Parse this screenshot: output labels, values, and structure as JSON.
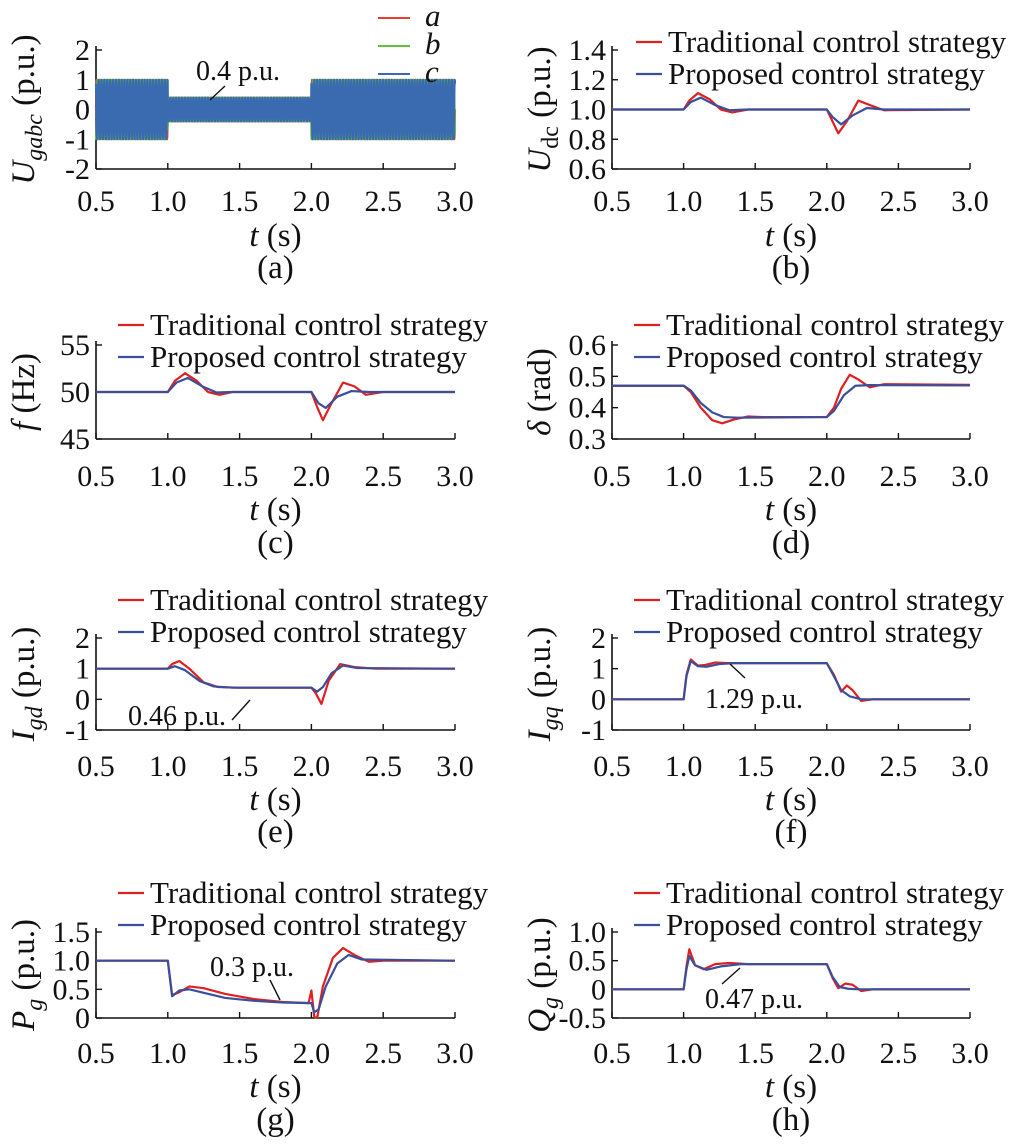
{
  "colors": {
    "traditional": "#e02020",
    "proposed": "#3a4f9a",
    "a": "#e84030",
    "b": "#60c040",
    "c": "#3a6ab0"
  },
  "chart_data": [
    {
      "id": "a",
      "type": "line",
      "sublabel": "(a)",
      "ylabel_main": "U",
      "ylabel_sub": "gabc",
      "ylabel_tail": " (p.u.)",
      "xlabel_var": "t",
      "xlabel_unit": " (s)",
      "xlim": [
        0.5,
        3.0
      ],
      "ylim": [
        -2,
        2
      ],
      "xticks": [
        "0.5",
        "1.0",
        "1.5",
        "2.0",
        "2.5",
        "3.0"
      ],
      "yticks": [
        "-2",
        "-1",
        "0",
        "1",
        "2"
      ],
      "annotation": "0.4 p.u.",
      "series": [
        {
          "name": "a",
          "color": "#e84030"
        },
        {
          "name": "b",
          "color": "#60c040"
        },
        {
          "name": "c",
          "color": "#3a6ab0"
        }
      ],
      "envelope": [
        {
          "from": 0.5,
          "to": 1.0,
          "amplitude": 1.0
        },
        {
          "from": 1.0,
          "to": 2.0,
          "amplitude": 0.4
        },
        {
          "from": 2.0,
          "to": 3.0,
          "amplitude": 1.0
        }
      ]
    },
    {
      "id": "b",
      "type": "line",
      "sublabel": "(b)",
      "ylabel_main": "U",
      "ylabel_sub": "dc",
      "ylabel_tail": " (p.u.)",
      "xlabel_var": "t",
      "xlabel_unit": " (s)",
      "xlim": [
        0.5,
        3.0
      ],
      "ylim": [
        0.6,
        1.4
      ],
      "xticks": [
        "0.5",
        "1.0",
        "1.5",
        "2.0",
        "2.5",
        "3.0"
      ],
      "yticks": [
        "0.6",
        "0.8",
        "1.0",
        "1.2",
        "1.4"
      ],
      "series": [
        {
          "name": "Traditional control strategy",
          "color": "#e02020",
          "x": [
            0.5,
            1.0,
            1.04,
            1.1,
            1.18,
            1.26,
            1.34,
            1.45,
            2.0,
            2.04,
            2.08,
            2.14,
            2.22,
            2.3,
            2.4,
            3.0
          ],
          "y": [
            1.0,
            1.0,
            1.06,
            1.11,
            1.07,
            1.0,
            0.98,
            1.0,
            1.0,
            0.92,
            0.84,
            0.92,
            1.06,
            1.03,
            0.995,
            1.0
          ]
        },
        {
          "name": "Proposed control strategy",
          "color": "#3a4f9a",
          "x": [
            0.5,
            1.0,
            1.05,
            1.12,
            1.22,
            1.32,
            1.45,
            2.0,
            2.04,
            2.1,
            2.18,
            2.28,
            2.4,
            3.0
          ],
          "y": [
            1.0,
            1.0,
            1.05,
            1.08,
            1.03,
            0.995,
            1.0,
            1.0,
            0.95,
            0.9,
            0.96,
            1.01,
            1.0,
            1.0
          ]
        }
      ]
    },
    {
      "id": "c",
      "type": "line",
      "sublabel": "(c)",
      "ylabel_main": "f",
      "ylabel_sub": "",
      "ylabel_tail": " (Hz)",
      "xlabel_var": "t",
      "xlabel_unit": " (s)",
      "xlim": [
        0.5,
        3.0
      ],
      "ylim": [
        45,
        55
      ],
      "xticks": [
        "0.5",
        "1.0",
        "1.5",
        "2.0",
        "2.5",
        "3.0"
      ],
      "yticks": [
        "45",
        "50",
        "55"
      ],
      "series": [
        {
          "name": "Traditional control strategy",
          "color": "#e02020",
          "x": [
            0.5,
            1.0,
            1.05,
            1.12,
            1.2,
            1.28,
            1.36,
            1.45,
            2.0,
            2.04,
            2.08,
            2.14,
            2.22,
            2.3,
            2.38,
            2.5,
            3.0
          ],
          "y": [
            50,
            50,
            51.2,
            52.0,
            51.2,
            50.0,
            49.7,
            50.0,
            50,
            48.4,
            47.0,
            48.8,
            51.0,
            50.6,
            49.7,
            50.0,
            50
          ]
        },
        {
          "name": "Proposed control strategy",
          "color": "#3a4f9a",
          "x": [
            0.5,
            1.0,
            1.06,
            1.14,
            1.24,
            1.34,
            1.45,
            2.0,
            2.05,
            2.1,
            2.18,
            2.28,
            2.4,
            3.0
          ],
          "y": [
            50,
            50,
            51.0,
            51.5,
            50.6,
            49.95,
            50.0,
            50,
            48.8,
            48.3,
            49.5,
            50.1,
            50.0,
            50
          ]
        }
      ]
    },
    {
      "id": "d",
      "type": "line",
      "sublabel": "(d)",
      "ylabel_main": "δ",
      "ylabel_sub": "",
      "ylabel_tail": " (rad)",
      "xlabel_var": "t",
      "xlabel_unit": " (s)",
      "xlim": [
        0.5,
        3.0
      ],
      "ylim": [
        0.3,
        0.6
      ],
      "xticks": [
        "0.5",
        "1.0",
        "1.5",
        "2.0",
        "2.5",
        "3.0"
      ],
      "yticks": [
        "0.3",
        "0.4",
        "0.5",
        "0.6"
      ],
      "series": [
        {
          "name": "Traditional control strategy",
          "color": "#e02020",
          "x": [
            0.5,
            1.0,
            1.05,
            1.12,
            1.2,
            1.27,
            1.35,
            1.45,
            1.55,
            2.0,
            2.05,
            2.1,
            2.16,
            2.22,
            2.3,
            2.4,
            3.0
          ],
          "y": [
            0.47,
            0.47,
            0.45,
            0.4,
            0.36,
            0.35,
            0.362,
            0.372,
            0.37,
            0.37,
            0.4,
            0.46,
            0.505,
            0.49,
            0.465,
            0.475,
            0.473
          ]
        },
        {
          "name": "Proposed control strategy",
          "color": "#3a4f9a",
          "x": [
            0.5,
            1.0,
            1.05,
            1.12,
            1.2,
            1.28,
            1.38,
            2.0,
            2.05,
            2.12,
            2.2,
            2.3,
            3.0
          ],
          "y": [
            0.47,
            0.47,
            0.455,
            0.415,
            0.385,
            0.37,
            0.368,
            0.37,
            0.39,
            0.44,
            0.47,
            0.472,
            0.471
          ]
        }
      ]
    },
    {
      "id": "e",
      "type": "line",
      "sublabel": "(e)",
      "ylabel_main": "I",
      "ylabel_sub": "gd",
      "ylabel_tail": " (p.u.)",
      "xlabel_var": "t",
      "xlabel_unit": " (s)",
      "xlim": [
        0.5,
        3.0
      ],
      "ylim": [
        -1,
        2
      ],
      "xticks": [
        "0.5",
        "1.0",
        "1.5",
        "2.0",
        "2.5",
        "3.0"
      ],
      "yticks": [
        "-1",
        "0",
        "1",
        "2"
      ],
      "annotation": "0.46 p.u.",
      "series": [
        {
          "name": "Traditional control strategy",
          "color": "#e02020",
          "x": [
            0.5,
            1.0,
            1.03,
            1.08,
            1.15,
            1.25,
            1.35,
            1.5,
            2.0,
            2.03,
            2.07,
            2.12,
            2.2,
            2.3,
            2.45,
            3.0
          ],
          "y": [
            1.0,
            1.0,
            1.15,
            1.25,
            1.0,
            0.55,
            0.4,
            0.38,
            0.38,
            0.2,
            -0.15,
            0.6,
            1.15,
            1.05,
            1.0,
            1.0
          ]
        },
        {
          "name": "Proposed control strategy",
          "color": "#3a4f9a",
          "x": [
            0.5,
            1.0,
            1.05,
            1.12,
            1.22,
            1.32,
            1.45,
            2.0,
            2.04,
            2.08,
            2.14,
            2.22,
            2.32,
            3.0
          ],
          "y": [
            1.0,
            1.0,
            1.08,
            0.95,
            0.6,
            0.42,
            0.38,
            0.38,
            0.25,
            0.4,
            0.85,
            1.1,
            1.02,
            1.0
          ]
        }
      ]
    },
    {
      "id": "f",
      "type": "line",
      "sublabel": "(f)",
      "ylabel_main": "I",
      "ylabel_sub": "gq",
      "ylabel_tail": " (p.u.)",
      "xlabel_var": "t",
      "xlabel_unit": " (s)",
      "xlim": [
        0.5,
        3.0
      ],
      "ylim": [
        -1,
        2
      ],
      "xticks": [
        "0.5",
        "1.0",
        "1.5",
        "2.0",
        "2.5",
        "3.0"
      ],
      "yticks": [
        "-1",
        "0",
        "1",
        "2"
      ],
      "annotation": "1.29 p.u.",
      "series": [
        {
          "name": "Traditional control strategy",
          "color": "#e02020",
          "x": [
            0.5,
            1.0,
            1.02,
            1.05,
            1.1,
            1.15,
            1.22,
            1.3,
            2.0,
            2.05,
            2.1,
            2.14,
            2.18,
            2.24,
            2.32,
            3.0
          ],
          "y": [
            0,
            0,
            0.8,
            1.3,
            1.1,
            1.12,
            1.2,
            1.18,
            1.18,
            0.8,
            0.25,
            0.45,
            0.3,
            -0.05,
            0.0,
            0.0
          ]
        },
        {
          "name": "Proposed control strategy",
          "color": "#3a4f9a",
          "x": [
            0.5,
            1.0,
            1.02,
            1.05,
            1.1,
            1.16,
            1.25,
            1.35,
            2.0,
            2.05,
            2.1,
            2.16,
            2.24,
            3.0
          ],
          "y": [
            0,
            0,
            0.75,
            1.25,
            1.08,
            1.06,
            1.15,
            1.18,
            1.18,
            0.75,
            0.3,
            0.1,
            0.0,
            0.0
          ]
        }
      ]
    },
    {
      "id": "g",
      "type": "line",
      "sublabel": "(g)",
      "ylabel_main": "P",
      "ylabel_sub": "g",
      "ylabel_tail": " (p.u.)",
      "xlabel_var": "t",
      "xlabel_unit": " (s)",
      "xlim": [
        0.5,
        3.0
      ],
      "ylim": [
        0,
        1.5
      ],
      "xticks": [
        "0.5",
        "1.0",
        "1.5",
        "2.0",
        "2.5",
        "3.0"
      ],
      "yticks": [
        "0",
        "0.5",
        "1.0",
        "1.5"
      ],
      "annotation": "0.3 p.u.",
      "series": [
        {
          "name": "Traditional control strategy",
          "color": "#e02020",
          "x": [
            0.5,
            1.0,
            1.03,
            1.08,
            1.15,
            1.25,
            1.4,
            1.6,
            1.8,
            1.98,
            2.0,
            2.02,
            2.04,
            2.08,
            2.15,
            2.22,
            2.3,
            2.4,
            2.5,
            3.0
          ],
          "y": [
            1.0,
            1.0,
            0.4,
            0.45,
            0.55,
            0.52,
            0.42,
            0.33,
            0.28,
            0.26,
            0.48,
            0.02,
            0.0,
            0.55,
            1.05,
            1.22,
            1.1,
            0.98,
            1.0,
            1.0
          ]
        },
        {
          "name": "Proposed control strategy",
          "color": "#3a4f9a",
          "x": [
            0.5,
            1.0,
            1.03,
            1.08,
            1.15,
            1.25,
            1.4,
            1.6,
            1.8,
            2.0,
            2.02,
            2.05,
            2.1,
            2.18,
            2.26,
            2.35,
            3.0
          ],
          "y": [
            1.0,
            1.0,
            0.38,
            0.48,
            0.5,
            0.44,
            0.35,
            0.3,
            0.27,
            0.26,
            0.1,
            0.15,
            0.55,
            0.95,
            1.1,
            1.02,
            1.0
          ]
        }
      ]
    },
    {
      "id": "h",
      "type": "line",
      "sublabel": "(h)",
      "ylabel_main": "Q",
      "ylabel_sub": "g",
      "ylabel_tail": " (p.u.)",
      "xlabel_var": "t",
      "xlabel_unit": " (s)",
      "xlim": [
        0.5,
        3.0
      ],
      "ylim": [
        -0.5,
        1.0
      ],
      "xticks": [
        "0.5",
        "1.0",
        "1.5",
        "2.0",
        "2.5",
        "3.0"
      ],
      "yticks": [
        "-0.5",
        "0",
        "0.5",
        "1.0"
      ],
      "annotation": "0.47 p.u.",
      "series": [
        {
          "name": "Traditional control strategy",
          "color": "#e02020",
          "x": [
            0.5,
            1.0,
            1.02,
            1.04,
            1.08,
            1.14,
            1.22,
            1.32,
            1.45,
            2.0,
            2.04,
            2.08,
            2.13,
            2.18,
            2.24,
            2.32,
            3.0
          ],
          "y": [
            0,
            0,
            0.4,
            0.7,
            0.42,
            0.35,
            0.44,
            0.46,
            0.44,
            0.44,
            0.2,
            0.02,
            0.1,
            0.08,
            -0.03,
            0.0,
            0.0
          ]
        },
        {
          "name": "Proposed control strategy",
          "color": "#3a4f9a",
          "x": [
            0.5,
            1.0,
            1.02,
            1.04,
            1.08,
            1.16,
            1.26,
            1.4,
            2.0,
            2.04,
            2.09,
            2.15,
            2.22,
            3.0
          ],
          "y": [
            0,
            0,
            0.35,
            0.58,
            0.42,
            0.34,
            0.4,
            0.44,
            0.44,
            0.22,
            0.04,
            0.01,
            0.0,
            0.0
          ]
        }
      ]
    }
  ]
}
